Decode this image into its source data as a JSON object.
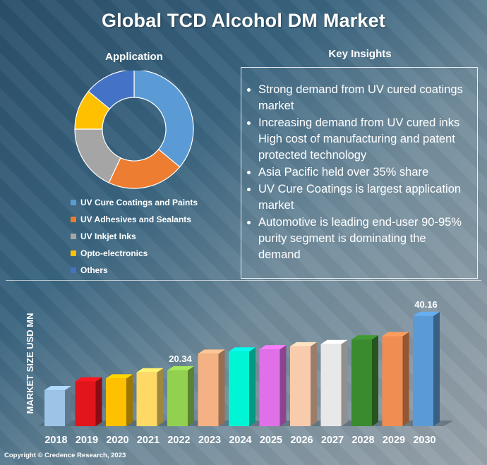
{
  "title": "Global TCD Alcohol DM Market",
  "application": {
    "title": "Application",
    "legend": [
      {
        "label": "UV Cure Coatings and Paints",
        "color": "#5b9bd5"
      },
      {
        "label": "UV Adhesives and Sealants",
        "color": "#ed7d31"
      },
      {
        "label": "UV Inkjet Inks",
        "color": "#a5a5a5"
      },
      {
        "label": "Opto-electronics",
        "color": "#ffc000"
      },
      {
        "label": "Others",
        "color": "#4472c4"
      }
    ]
  },
  "insights": {
    "title": "Key Insights",
    "items": [
      "Strong demand from UV cured coatings market",
      "Increasing demand from UV cured inks High cost of manufacturing and patent protected technology",
      "Asia Pacific held over 35% share",
      "UV Cure Coatings is largest application market",
      "Automotive is leading end-user 90-95% purity segment is dominating the demand"
    ]
  },
  "chart_data": [
    {
      "type": "pie",
      "title": "Application",
      "categories": [
        "UV Cure Coatings and Paints",
        "UV Adhesives and Sealants",
        "UV Inkjet Inks",
        "Opto-electronics",
        "Others"
      ],
      "values": [
        36,
        21,
        18,
        11,
        14
      ],
      "colors": [
        "#5b9bd5",
        "#ed7d31",
        "#a5a5a5",
        "#ffc000",
        "#4472c4"
      ]
    },
    {
      "type": "bar",
      "title": "Global TCD Alcohol DM Market",
      "ylabel": "MARKET SIZE USD MN",
      "xlabel": "",
      "categories": [
        "2018",
        "2019",
        "2020",
        "2021",
        "2022",
        "2023",
        "2024",
        "2025",
        "2026",
        "2027",
        "2028",
        "2029",
        "2030"
      ],
      "values": [
        13.1,
        16.3,
        17.4,
        19.6,
        20.34,
        26.4,
        27.2,
        28.0,
        29.1,
        29.9,
        31.6,
        32.8,
        40.16
      ],
      "data_labels": {
        "2022": "20.34",
        "2030": "40.16"
      },
      "colors": [
        "#9dc3e6",
        "#e2141c",
        "#ffc000",
        "#ffd966",
        "#92d050",
        "#f4b183",
        "#00f5d4",
        "#e070e8",
        "#f8cbad",
        "#e8e8e8",
        "#3a8a2e",
        "#f08d52",
        "#5b9bd5"
      ],
      "ylim": [
        0,
        45
      ]
    }
  ],
  "copyright": "Copyright © Credence Research, 2023"
}
